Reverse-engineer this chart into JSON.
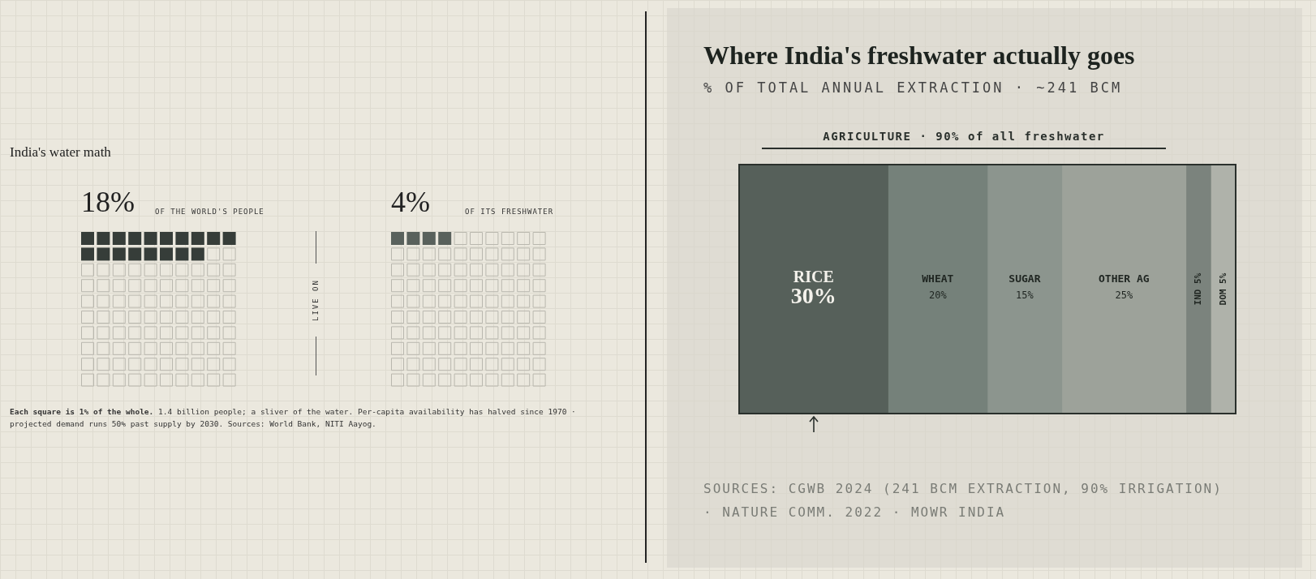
{
  "chart_data": [
    {
      "type": "other",
      "title": "India's water math",
      "categories": [
        "OF THE WORLD'S PEOPLE",
        "OF ITS FRESHWATER"
      ],
      "values": [
        18,
        4
      ],
      "value_labels": [
        "18%",
        "4%"
      ],
      "colors": [
        "#363d39",
        "#59615c"
      ],
      "annotations": [
        "LIVE ON",
        "Each square is 1% of the whole.",
        "1.4 billion people; a sliver of the water. Per-capita availability has halved since 1970 · projected demand runs 50% past supply by 2030. Sources: World Bank, NITI Aayog."
      ]
    },
    {
      "type": "bar",
      "title": "Where India's freshwater actually goes",
      "subtitle": "% OF TOTAL ANNUAL EXTRACTION · ~241 BCM",
      "orientation": "horizontal",
      "stacked": true,
      "categories": [
        null
      ],
      "xlim": [
        0,
        100
      ],
      "tick_labels": false,
      "legend": false,
      "series": [
        {
          "name": "RICE",
          "color": "#56605a",
          "values": [
            30
          ],
          "value_labels": [
            "30%"
          ]
        },
        {
          "name": "WHEAT",
          "color": "#75817a",
          "values": [
            20
          ],
          "value_labels": [
            "20%"
          ]
        },
        {
          "name": "SUGAR",
          "color": "#8c958e",
          "values": [
            15
          ],
          "value_labels": [
            "15%"
          ]
        },
        {
          "name": "OTHER AG",
          "color": "#9da29a",
          "values": [
            25
          ],
          "value_labels": [
            "25%"
          ]
        },
        {
          "name": "IND",
          "color": "#7b837d",
          "values": [
            5
          ],
          "value_labels": [
            "5%"
          ]
        },
        {
          "name": "DOM",
          "color": "#afb2aa",
          "values": [
            5
          ],
          "value_labels": [
            "5%"
          ]
        }
      ],
      "annotations": [
        "AGRICULTURE · 90% of all freshwater",
        "SOURCES: CGWB 2024 (241 BCM EXTRACTION, 90% IRRIGATION) · NATURE COMM. 2022 · MOWR INDIA"
      ]
    }
  ]
}
